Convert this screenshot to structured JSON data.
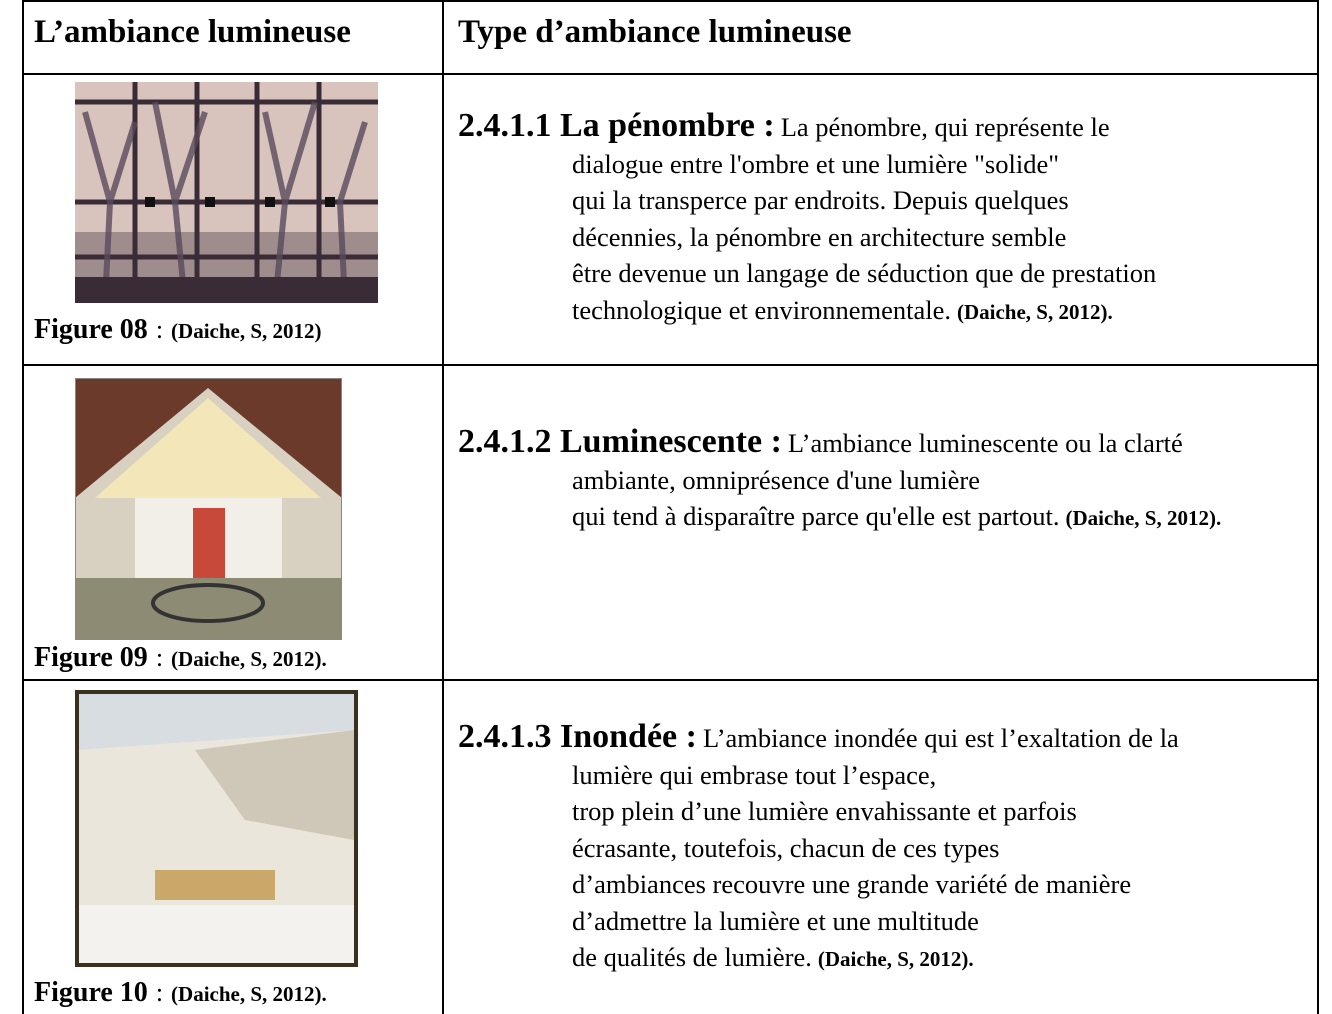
{
  "table": {
    "header": [
      "L’ambiance lumineuse",
      "Type d’ambiance lumineuse"
    ],
    "rows": [
      {
        "caption": {
          "label": "Figure 08",
          "separator": ":",
          "source": "(Daiche, S, 2012)"
        },
        "heading": "2.4.1.1 La pénombre :",
        "lines": [
          "La pénombre, qui représente le",
          "dialogue entre l'ombre et une lumière \"solide\"",
          "qui la transperce par endroits. Depuis quelques",
          "décennies, la pénombre en architecture semble",
          "être devenue un langage de séduction que de prestation",
          "technologique et environnementale."
        ],
        "citation": "(Daiche, S, 2012)."
      },
      {
        "caption": {
          "label": "Figure 09",
          "separator": ":",
          "source": "(Daiche, S, 2012)."
        },
        "heading": "2.4.1.2 Luminescente :",
        "lines": [
          "L’ambiance luminescente ou la clarté",
          "ambiante, omniprésence d'une lumière",
          "qui tend à disparaître parce qu'elle est partout."
        ],
        "citation": "(Daiche, S, 2012)."
      },
      {
        "caption": {
          "label": "Figure 10",
          "separator": ":",
          "source": "(Daiche, S, 2012)."
        },
        "heading": "2.4.1.3 Inondée :",
        "lines": [
          "L’ambiance inondée qui est l’exaltation de la",
          "lumière qui embrase tout l’espace,",
          "trop plein d’une lumière envahissante et parfois",
          "écrasante, toutefois, chacun de ces types",
          "d’ambiances recouvre une grande variété de manière",
          "d’admettre la lumière et une multitude",
          "de qualités de lumière."
        ],
        "citation": "(Daiche, S, 2012)."
      }
    ]
  }
}
